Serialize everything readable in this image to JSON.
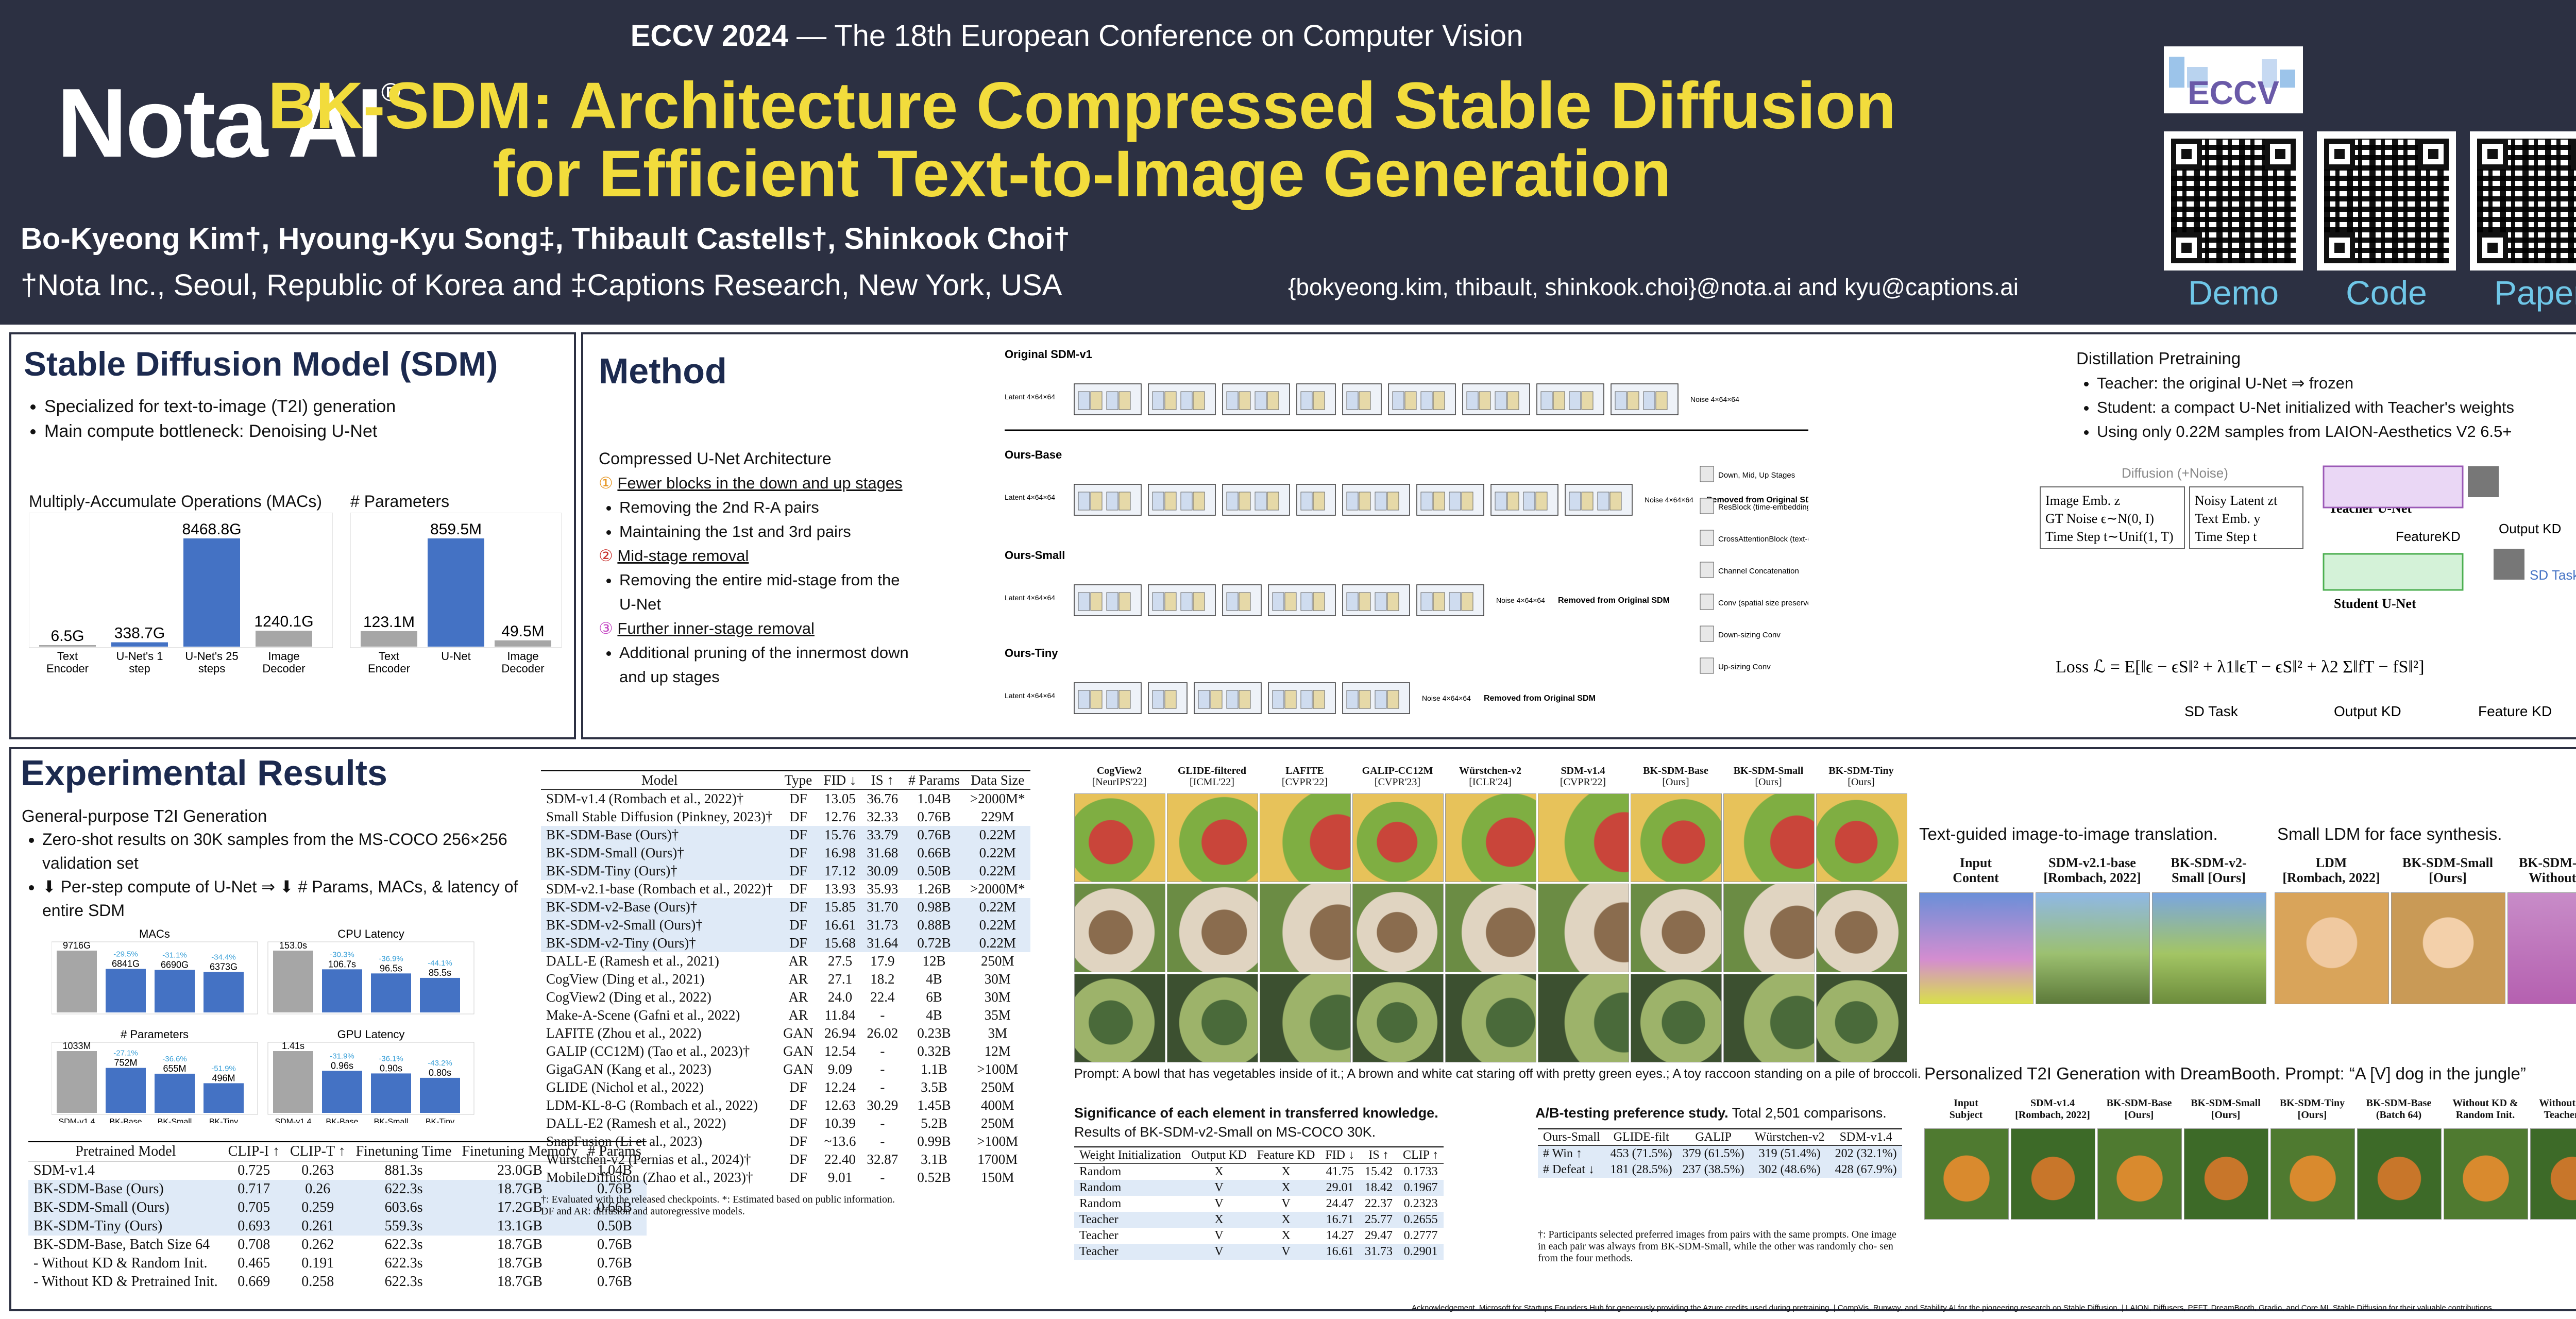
{
  "header": {
    "logo": "Nota AI",
    "logo_mark": "®",
    "conference_bold": "ECCV 2024",
    "conference_rest": " — The 18th European Conference on Computer Vision",
    "title_line1": "BK-SDM: Architecture Compressed Stable Diffusion",
    "title_line2": "for Efficient Text-to-Image Generation",
    "authors": "Bo-Kyeong Kim†, Hyoung-Kyu Song‡, Thibault Castells†, Shinkook Choi†",
    "affiliations": "†Nota Inc., Seoul, Republic of Korea and ‡Captions Research, New York, USA",
    "emails": "{bokyeong.kim, thibault, shinkook.choi}@nota.ai and  kyu@captions.ai",
    "eccv_logo": "ECCV",
    "qr_labels": [
      "Demo",
      "Code",
      "Paper"
    ]
  },
  "sdm": {
    "title": "Stable Diffusion Model (SDM)",
    "bullets": [
      "Specialized for text-to-image (T2I) generation",
      "Main compute bottleneck: Denoising U-Net"
    ],
    "macs_title": "Multiply-Accumulate Operations (MACs)",
    "macs_values": [
      "6.5G",
      "338.7G",
      "8468.8G",
      "1240.1G"
    ],
    "macs_numeric": [
      6.5,
      338.7,
      8468.8,
      1240.1
    ],
    "macs_labels": [
      "Text Encoder",
      "U-Net's 1 step",
      "U-Net's 25 steps",
      "Image Decoder"
    ],
    "params_title": "# Parameters",
    "params_values": [
      "123.1M",
      "859.5M",
      "49.5M"
    ],
    "params_numeric": [
      123.1,
      859.5,
      49.5
    ],
    "params_labels": [
      "Text Encoder",
      "U-Net",
      "Image Decoder"
    ]
  },
  "method": {
    "title": "Method",
    "subtitle": "Compressed U-Net Architecture",
    "items": [
      {
        "num": "①",
        "head": "Fewer blocks in the down and up stages",
        "subs": [
          "Removing the 2nd R-A pairs",
          "Maintaining the 1st and 3rd pairs"
        ]
      },
      {
        "num": "②",
        "head": "Mid-stage removal",
        "subs": [
          "Removing the entire mid-stage from the U-Net"
        ]
      },
      {
        "num": "③",
        "head": "Further inner-stage removal",
        "subs": [
          "Additional pruning of the innermost down and up stages"
        ]
      }
    ],
    "arch_rows": [
      "Original SDM-v1",
      "Ours-Base",
      "Ours-Small",
      "Ours-Tiny"
    ],
    "latent_label": "Latent 4×64×64",
    "noise_label": "Noise 4×64×64",
    "removed_label": "Removed from Original SDM",
    "legend": [
      "Down, Mid, Up Stages",
      "ResBlock (time-embedding conditioned)",
      "CrossAttentionBlock (text-embedding conditioned)",
      "Channel Concatenation",
      "Conv (spatial size preserved)",
      "Down-sizing Conv",
      "Up-sizing Conv"
    ],
    "distill_title": "Distillation Pretraining",
    "distill_bullets": [
      "Teacher: the original U-Net ⇒ frozen",
      "Student: a compact U-Net initialized with Teacher's weights",
      "Using only 0.22M samples from LAION-Aesthetics V2 6.5+"
    ],
    "diffusion_label": "Diffusion (+Noise)",
    "left_inputs": [
      "Image Emb. z",
      "GT Noise ϵ∼N(0, I)",
      "Time Step t∼Unif(1, T)"
    ],
    "right_inputs": [
      "Noisy Latent zt",
      "Text Emb. y",
      "Time Step t"
    ],
    "teacher_label": "Teacher U-Net",
    "student_label": "Student U-Net",
    "featurekd": "FeatureKD",
    "outputkd": "Output KD",
    "sdtask": "SD Task",
    "loss_label": "Loss ℒ = E[‖ϵ − ϵS‖² + λ1‖ϵT − ϵS‖² + λ2 Σ‖fT − fS‖²]",
    "loss_parts": [
      "SD Task",
      "Output KD",
      "Feature KD"
    ]
  },
  "results": {
    "title": "Experimental Results",
    "sub": "General-purpose T2I Generation",
    "bullets": [
      "Zero-shot results on 30K samples from the MS-COCO 256×256 validation set",
      "⬇ Per-step compute of U-Net ⇒ ⬇ # Params, MACs, & latency of entire SDM"
    ],
    "mini_charts": [
      {
        "title": "MACs",
        "values": [
          9716,
          6841,
          6690,
          6373
        ],
        "labels": [
          "9716G",
          "6841G",
          "6690G",
          "6373G"
        ],
        "deltas": [
          "",
          "-29.5%",
          "-31.1%",
          "-34.4%"
        ]
      },
      {
        "title": "CPU Latency",
        "values": [
          153.0,
          106.7,
          96.5,
          85.5
        ],
        "labels": [
          "153.0s",
          "106.7s",
          "96.5s",
          "85.5s"
        ],
        "deltas": [
          "",
          "-30.3%",
          "-36.9%",
          "-44.1%"
        ]
      },
      {
        "title": "# Parameters",
        "values": [
          1033,
          752,
          655,
          496
        ],
        "labels": [
          "1033M",
          "752M",
          "655M",
          "496M"
        ],
        "deltas": [
          "",
          "-27.1%",
          "-36.6%",
          "-51.9%"
        ]
      },
      {
        "title": "GPU Latency",
        "values": [
          1.41,
          0.96,
          0.9,
          0.8
        ],
        "labels": [
          "1.41s",
          "0.96s",
          "0.90s",
          "0.80s"
        ],
        "deltas": [
          "",
          "-31.9%",
          "-36.1%",
          "-43.2%"
        ]
      }
    ],
    "mini_xlabels": [
      "SDM-v1.4",
      "BK-Base",
      "BK-Small",
      "BK-Tiny"
    ],
    "clip_table": {
      "headers": [
        "Pretrained Model",
        "CLIP-I ↑",
        "CLIP-T ↑",
        "Finetuning Time",
        "Finetuning Memory",
        "# Params"
      ],
      "rows": [
        [
          "SDM-v1.4",
          "0.725",
          "0.263",
          "881.3s",
          "23.0GB",
          "1.04B"
        ],
        [
          "BK-SDM-Base (Ours)",
          "0.717",
          "0.26",
          "622.3s",
          "18.7GB",
          "0.76B"
        ],
        [
          "BK-SDM-Small (Ours)",
          "0.705",
          "0.259",
          "603.6s",
          "17.2GB",
          "0.66B"
        ],
        [
          "BK-SDM-Tiny (Ours)",
          "0.693",
          "0.261",
          "559.3s",
          "13.1GB",
          "0.50B"
        ],
        [
          "BK-SDM-Base, Batch Size 64",
          "0.708",
          "0.262",
          "622.3s",
          "18.7GB",
          "0.76B"
        ],
        [
          " - Without KD & Random Init.",
          "0.465",
          "0.191",
          "622.3s",
          "18.7GB",
          "0.76B"
        ],
        [
          " - Without KD & Pretrained Init.",
          "0.669",
          "0.258",
          "622.3s",
          "18.7GB",
          "0.76B"
        ]
      ]
    },
    "fid_table": {
      "headers": [
        "Model",
        "Type",
        "FID ↓",
        "IS ↑",
        "# Params",
        "Data Size"
      ],
      "rows": [
        [
          "SDM-v1.4 (Rombach et al., 2022)†",
          "DF",
          "13.05",
          "36.76",
          "1.04B",
          ">2000M*"
        ],
        [
          "Small Stable Diffusion (Pinkney, 2023)†",
          "DF",
          "12.76",
          "32.33",
          "0.76B",
          "229M"
        ],
        [
          "BK-SDM-Base (Ours)†",
          "DF",
          "15.76",
          "33.79",
          "0.76B",
          "0.22M"
        ],
        [
          "BK-SDM-Small (Ours)†",
          "DF",
          "16.98",
          "31.68",
          "0.66B",
          "0.22M"
        ],
        [
          "BK-SDM-Tiny (Ours)†",
          "DF",
          "17.12",
          "30.09",
          "0.50B",
          "0.22M"
        ],
        [
          "SDM-v2.1-base (Rombach et al., 2022)†",
          "DF",
          "13.93",
          "35.93",
          "1.26B",
          ">2000M*"
        ],
        [
          "BK-SDM-v2-Base (Ours)†",
          "DF",
          "15.85",
          "31.70",
          "0.98B",
          "0.22M"
        ],
        [
          "BK-SDM-v2-Small (Ours)†",
          "DF",
          "16.61",
          "31.73",
          "0.88B",
          "0.22M"
        ],
        [
          "BK-SDM-v2-Tiny (Ours)†",
          "DF",
          "15.68",
          "31.64",
          "0.72B",
          "0.22M"
        ],
        [
          "DALL-E (Ramesh et al., 2021)",
          "AR",
          "27.5",
          "17.9",
          "12B",
          "250M"
        ],
        [
          "CogView (Ding et al., 2021)",
          "AR",
          "27.1",
          "18.2",
          "4B",
          "30M"
        ],
        [
          "CogView2 (Ding et al., 2022)",
          "AR",
          "24.0",
          "22.4",
          "6B",
          "30M"
        ],
        [
          "Make-A-Scene (Gafni et al., 2022)",
          "AR",
          "11.84",
          "-",
          "4B",
          "35M"
        ],
        [
          "LAFITE (Zhou et al., 2022)",
          "GAN",
          "26.94",
          "26.02",
          "0.23B",
          "3M"
        ],
        [
          "GALIP (CC12M) (Tao et al., 2023)†",
          "GAN",
          "12.54",
          "-",
          "0.32B",
          "12M"
        ],
        [
          "GigaGAN (Kang et al., 2023)",
          "GAN",
          "9.09",
          "-",
          "1.1B",
          ">100M"
        ],
        [
          "GLIDE (Nichol et al., 2022)",
          "DF",
          "12.24",
          "-",
          "3.5B",
          "250M"
        ],
        [
          "LDM-KL-8-G (Rombach et al., 2022)",
          "DF",
          "12.63",
          "30.29",
          "1.45B",
          "400M"
        ],
        [
          "DALL-E2 (Ramesh et al., 2022)",
          "DF",
          "10.39",
          "-",
          "5.2B",
          "250M"
        ],
        [
          "SnapFusion (Li et al., 2023)",
          "DF",
          "~13.6",
          "-",
          "0.99B",
          ">100M"
        ],
        [
          "Würstchen-v2 (Pernias et al., 2024)†",
          "DF",
          "22.40",
          "32.87",
          "3.1B",
          "1700M"
        ],
        [
          "MobileDiffusion (Zhao et al., 2023)†",
          "DF",
          "9.01",
          "-",
          "0.52B",
          "150M"
        ]
      ],
      "footnote1": "†: Evaluated with the released checkpoints. *: Estimated based on public information.",
      "footnote2": "DF and AR: diffusion and autoregressive models."
    },
    "gallery_cols": [
      [
        "CogView2",
        "[NeurIPS'22]"
      ],
      [
        "GLIDE-filtered",
        "[ICML'22]"
      ],
      [
        "LAFITE",
        "[CVPR'22]"
      ],
      [
        "GALIP-CC12M",
        "[CVPR'23]"
      ],
      [
        "Würstchen-v2",
        "[ICLR'24]"
      ],
      [
        "SDM-v1.4",
        "[CVPR'22]"
      ],
      [
        "BK-SDM-Base",
        "[Ours]"
      ],
      [
        "BK-SDM-Small",
        "[Ours]"
      ],
      [
        "BK-SDM-Tiny",
        "[Ours]"
      ]
    ],
    "prompt": "Prompt:  A bowl that has vegetables inside of it.; A brown and white cat staring off with pretty green eyes.; A toy raccoon standing on a pile of broccoli.",
    "sig_title": "Significance of each element in transferred knowledge.",
    "sig_sub": "Results of BK-SDM-v2-Small on MS-COCO 30K.",
    "sig_table": {
      "headers": [
        "Weight Initialization",
        "Output KD",
        "Feature KD",
        "FID ↓",
        "IS ↑",
        "CLIP ↑"
      ],
      "rows": [
        [
          "Random",
          "X",
          "X",
          "41.75",
          "15.42",
          "0.1733"
        ],
        [
          "Random",
          "V",
          "X",
          "29.01",
          "18.42",
          "0.1967"
        ],
        [
          "Random",
          "V",
          "V",
          "24.47",
          "22.37",
          "0.2323"
        ],
        [
          "Teacher",
          "X",
          "X",
          "16.71",
          "25.77",
          "0.2655"
        ],
        [
          "Teacher",
          "V",
          "X",
          "14.27",
          "29.47",
          "0.2777"
        ],
        [
          "Teacher",
          "V",
          "V",
          "16.61",
          "31.73",
          "0.2901"
        ]
      ]
    },
    "ab_title": "A/B-testing preference study.",
    "ab_sub": " Total 2,501 comparisons.",
    "ab_table": {
      "headers": [
        "Ours-Small",
        "GLIDE-filt",
        "GALIP",
        "Würstchen-v2",
        "SDM-v1.4"
      ],
      "rows": [
        [
          "# Win ↑",
          "453 (71.5%)",
          "379 (61.5%)",
          "319 (51.4%)",
          "202 (32.1%)"
        ],
        [
          "# Defeat ↓",
          "181 (28.5%)",
          "237 (38.5%)",
          "302 (48.6%)",
          "428 (67.9%)"
        ]
      ]
    },
    "ab_note": "†: Participants selected preferred images from pairs with the same prompts. One image in each pair was always from BK-SDM-Small, while the other was randomly cho- sen from the four methods.",
    "i2i_title": "Text-guided image-to-image translation.",
    "i2i_cols": [
      [
        "Input",
        "Content"
      ],
      [
        "SDM-v2.1-base",
        "[Rombach, 2022]"
      ],
      [
        "BK-SDM-v2-",
        "Small [Ours]"
      ]
    ],
    "face_title": "Small LDM for face synthesis.",
    "face_cols": [
      [
        "LDM",
        "[Rombach, 2022]"
      ],
      [
        "BK-SDM-Small",
        "[Ours]"
      ],
      [
        "BK-SDM-Small",
        "Without KD"
      ]
    ],
    "db_title": "Personalized T2I Generation with DreamBooth. Prompt: “A [V] dog in the jungle”",
    "db_cols": [
      [
        "Input",
        "Subject"
      ],
      [
        "SDM-v1.4",
        "[Rombach, 2022]"
      ],
      [
        "BK-SDM-Base",
        "[Ours]"
      ],
      [
        "BK-SDM-Small",
        "[Ours]"
      ],
      [
        "BK-SDM-Tiny",
        "[Ours]"
      ],
      [
        "BK-SDM-Base",
        "(Batch 64)"
      ],
      [
        "Without KD &",
        "Random Init."
      ],
      [
        "Without KD &",
        "Teacher Init."
      ]
    ],
    "ack": "Acknowledgement. Microsoft for Startups Founders Hub for generously providing the Azure credits used during pretraining. | CompVis, Runway, and Stability AI for the pioneering research on Stable Diffusion. | LAION, Diffusers, PEFT, DreamBooth, Gradio, and Core ML Stable Diffusion for their valuable contributions."
  },
  "colors": {
    "header_bg": "#2c3042",
    "title_yellow": "#f2dc3c",
    "bar_blue": "#4472c4",
    "bar_gray": "#a6a6a6",
    "qr_label": "#6fc7e8"
  }
}
